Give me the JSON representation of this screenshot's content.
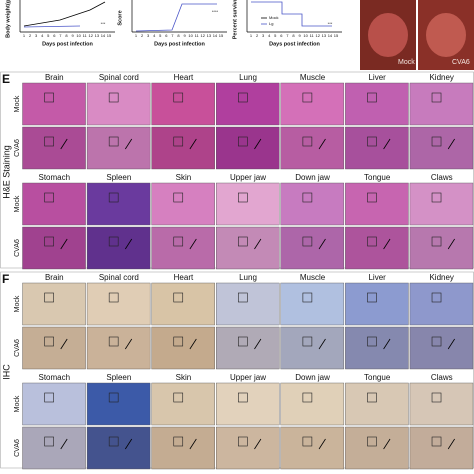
{
  "charts": [
    {
      "y_label": "Body weight(g)",
      "x_label": "Days post infection",
      "x_ticks": [
        1,
        2,
        3,
        4,
        5,
        6,
        7,
        8,
        9,
        10,
        11,
        12,
        13,
        14,
        15
      ],
      "annotation": "***"
    },
    {
      "y_label": "Score",
      "x_label": "Days post infection",
      "x_ticks": [
        1,
        2,
        3,
        4,
        5,
        6,
        7,
        8,
        9,
        10,
        11,
        12,
        13,
        14,
        15
      ],
      "annotation": "****"
    },
    {
      "y_label": "Percent survival",
      "x_label": "Days post infection",
      "x_ticks": [
        1,
        2,
        3,
        4,
        5,
        6,
        7,
        8,
        9,
        10,
        11,
        12,
        13,
        14,
        15
      ],
      "annotation": "***",
      "legend": [
        "Mock",
        "Lg"
      ]
    }
  ],
  "photos": [
    "Mock",
    "CVA6"
  ],
  "panels": [
    {
      "label": "E",
      "method": "H&E Staining",
      "groups": [
        "Mock",
        "CVA6"
      ],
      "tissue_rows": [
        [
          "Brain",
          "Spinal cord",
          "Heart",
          "Lung",
          "Muscle",
          "Liver",
          "Kidney"
        ],
        [
          "Stomach",
          "Spleen",
          "Skin",
          "Upper jaw",
          "Down jaw",
          "Tongue",
          "Claws"
        ]
      ]
    },
    {
      "label": "F",
      "method": "IHC",
      "groups": [
        "Mock",
        "CVA6"
      ],
      "tissue_rows": [
        [
          "Brain",
          "Spinal cord",
          "Heart",
          "Lung",
          "Muscle",
          "Liver",
          "Kidney"
        ],
        [
          "Stomach",
          "Spleen",
          "Skin",
          "Upper jaw",
          "Down jaw",
          "Tongue",
          "Claws"
        ]
      ]
    }
  ]
}
